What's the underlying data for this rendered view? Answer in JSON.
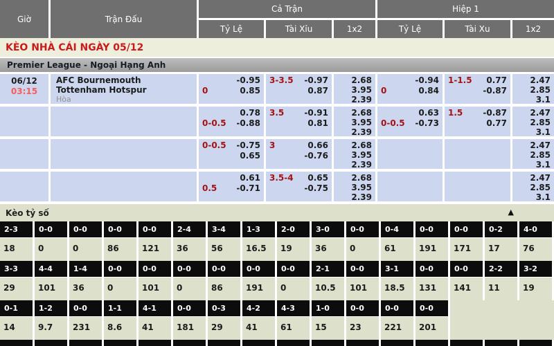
{
  "header": {
    "col_time": "Giờ",
    "col_match": "Trận Đấu",
    "group_full": "Cả Trận",
    "group_half": "Hiệp 1",
    "full_subs": [
      "Tỷ Lệ",
      "Tài Xỉu",
      "1x2"
    ],
    "half_subs": [
      "Tỷ Lệ",
      "Tài Xu",
      "1x2"
    ]
  },
  "banner": {
    "title": "KÈO NHÀ CÁI NGÀY 05/12"
  },
  "league": {
    "name": "Premier League - Ngoại Hạng Anh"
  },
  "odds": {
    "rows": [
      {
        "date": "06/12",
        "time": "03:15",
        "home": "AFC Bournemouth",
        "away": "Tottenham Hotspur",
        "draw": "Hòa",
        "ft_hdp": {
          "l1l": "",
          "l1r": "-0.95",
          "l2l": "0",
          "l2r": "0.85"
        },
        "ft_ou": {
          "l1l": "3-3.5",
          "l1r": "-0.97",
          "l2l": "",
          "l2r": "0.87"
        },
        "ft_1x2": [
          "2.68",
          "3.95",
          "2.39"
        ],
        "h1_hdp": {
          "l1l": "",
          "l1r": "-0.94",
          "l2l": "0",
          "l2r": "0.84"
        },
        "h1_ou": {
          "l1l": "1-1.5",
          "l1r": "0.77",
          "l2l": "",
          "l2r": "-0.87"
        },
        "h1_1x2": [
          "2.47",
          "2.85",
          "3.1"
        ]
      },
      {
        "date": "",
        "time": "",
        "home": "",
        "away": "",
        "draw": "",
        "ft_hdp": {
          "l1l": "",
          "l1r": "0.78",
          "l2l": "0-0.5",
          "l2r": "-0.88"
        },
        "ft_ou": {
          "l1l": "3.5",
          "l1r": "-0.91",
          "l2l": "",
          "l2r": "0.81"
        },
        "ft_1x2": [
          "2.68",
          "3.95",
          "2.39"
        ],
        "h1_hdp": {
          "l1l": "",
          "l1r": "0.63",
          "l2l": "0-0.5",
          "l2r": "-0.73"
        },
        "h1_ou": {
          "l1l": "1.5",
          "l1r": "-0.87",
          "l2l": "",
          "l2r": "0.77"
        },
        "h1_1x2": [
          "2.47",
          "2.85",
          "3.1"
        ]
      },
      {
        "date": "",
        "time": "",
        "home": "",
        "away": "",
        "draw": "",
        "ft_hdp": {
          "l1l": "0-0.5",
          "l1r": "-0.75",
          "l2l": "",
          "l2r": "0.65"
        },
        "ft_ou": {
          "l1l": "3",
          "l1r": "0.66",
          "l2l": "",
          "l2r": "-0.76"
        },
        "ft_1x2": [
          "2.68",
          "3.95",
          "2.39"
        ],
        "h1_hdp": {
          "l1l": "",
          "l1r": "",
          "l2l": "",
          "l2r": ""
        },
        "h1_ou": {
          "l1l": "",
          "l1r": "",
          "l2l": "",
          "l2r": ""
        },
        "h1_1x2": [
          "2.47",
          "2.85",
          "3.1"
        ]
      },
      {
        "date": "",
        "time": "",
        "home": "",
        "away": "",
        "draw": "",
        "ft_hdp": {
          "l1l": "",
          "l1r": "0.61",
          "l2l": "0.5",
          "l2r": "-0.71"
        },
        "ft_ou": {
          "l1l": "3.5-4",
          "l1r": "0.65",
          "l2l": "",
          "l2r": "-0.75"
        },
        "ft_1x2": [
          "2.68",
          "3.95",
          "2.39"
        ],
        "h1_hdp": {
          "l1l": "",
          "l1r": "",
          "l2l": "",
          "l2r": ""
        },
        "h1_ou": {
          "l1l": "",
          "l1r": "",
          "l2l": "",
          "l2r": ""
        },
        "h1_1x2": [
          "2.47",
          "2.85",
          "3.1"
        ]
      }
    ]
  },
  "score_section": {
    "title": "Kèo tỷ số",
    "collapse_icon": "▲",
    "rows": [
      {
        "scores": [
          "2-3",
          "0-0",
          "0-0",
          "0-0",
          "0-0",
          "2-4",
          "3-4",
          "1-3",
          "2-0",
          "3-0",
          "0-0",
          "0-4",
          "0-0",
          "0-0",
          "0-2",
          "4-0"
        ],
        "values": [
          "18",
          "0",
          "0",
          "86",
          "121",
          "36",
          "56",
          "16.5",
          "19",
          "36",
          "0",
          "61",
          "191",
          "171",
          "17",
          "76"
        ]
      },
      {
        "scores": [
          "3-3",
          "4-4",
          "1-4",
          "0-0",
          "0-0",
          "0-0",
          "0-0",
          "0-0",
          "0-0",
          "2-1",
          "0-0",
          "3-1",
          "0-0",
          "0-0",
          "2-2",
          "3-2"
        ],
        "values": [
          "29",
          "101",
          "36",
          "0",
          "101",
          "0",
          "86",
          "191",
          "0",
          "10.5",
          "101",
          "18.5",
          "131",
          "141",
          "11",
          "19"
        ]
      },
      {
        "scores": [
          "0-1",
          "1-2",
          "0-0",
          "1-1",
          "4-1",
          "0-0",
          "0-3",
          "4-2",
          "4-3",
          "1-0",
          "0-0",
          "0-0",
          "0-0"
        ],
        "values": [
          "14",
          "9.7",
          "231",
          "8.6",
          "41",
          "181",
          "29",
          "41",
          "61",
          "15",
          "23",
          "221",
          "201"
        ]
      }
    ]
  },
  "colors": {
    "header_bg": "#6f6f6f",
    "row_bg": "#ccd6ee",
    "banner_bg": "#edefdc",
    "banner_text": "#cb1a1a",
    "handicap_text": "#a41313",
    "time_text": "#fb5b5b",
    "section_bg": "#dde0cb",
    "score_header_bg": "#0c0c0c"
  }
}
